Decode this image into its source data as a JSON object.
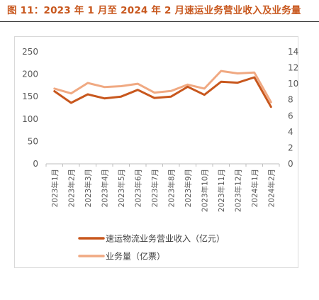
{
  "figure": {
    "title": "图 11：2023 年 1 月至 2024 年 2 月速运业务营业收入及业务量"
  },
  "chart_data": {
    "type": "line",
    "categories": [
      "2023年1月",
      "2023年2月",
      "2023年3月",
      "2023年4月",
      "2023年5月",
      "2023年6月",
      "2023年7月",
      "2023年8月",
      "2023年9月",
      "2023年10月",
      "2023年11月",
      "2023年12月",
      "2024年1月",
      "2024年2月"
    ],
    "series": [
      {
        "name": "速运物流业务营业收入（亿元）",
        "axis": "left",
        "color": "#c8571d",
        "values": [
          162,
          136,
          155,
          146,
          150,
          165,
          147,
          150,
          172,
          154,
          183,
          181,
          193,
          127
        ]
      },
      {
        "name": "业务量（亿票）",
        "axis": "right",
        "color": "#f0a982",
        "values": [
          9.4,
          8.8,
          10.1,
          9.6,
          9.7,
          10.0,
          8.9,
          9.1,
          9.9,
          9.4,
          11.6,
          11.3,
          11.4,
          7.7
        ]
      }
    ],
    "y_left": {
      "ticks": [
        0,
        50,
        100,
        150,
        200,
        250
      ],
      "range": [
        0,
        250
      ]
    },
    "y_right": {
      "ticks": [
        0,
        2,
        4,
        6,
        8,
        10,
        12,
        14
      ],
      "range": [
        0,
        14
      ]
    },
    "grid": false,
    "legend_position": "bottom"
  }
}
